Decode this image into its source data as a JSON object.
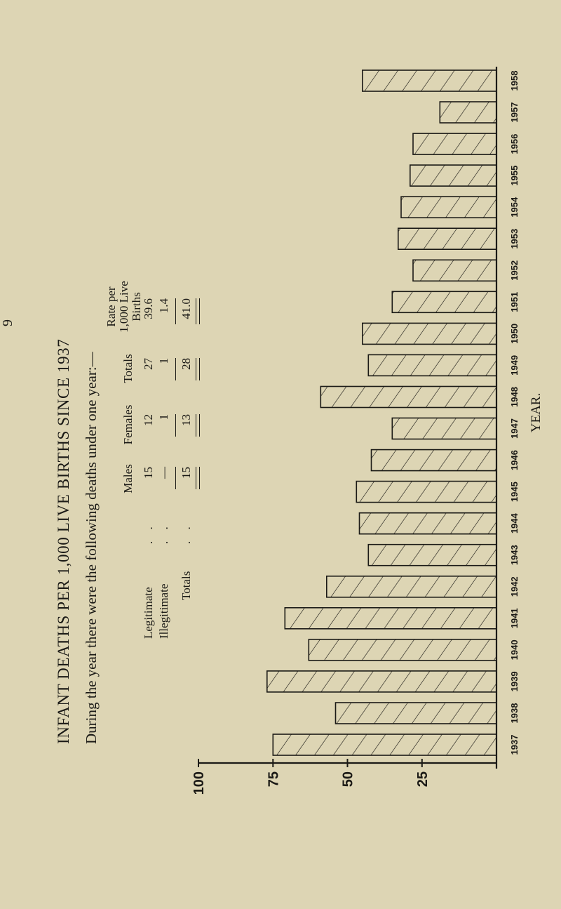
{
  "title": "INFANT DEATHS PER 1,000 LIVE BIRTHS SINCE 1937",
  "intro": "During the year there were the following deaths under one year:—",
  "table": {
    "headers": {
      "males": "Males",
      "females": "Females",
      "totals": "Totals",
      "rate": [
        "Rate per",
        "1,000 Live",
        "Births"
      ]
    },
    "rows": [
      {
        "label": "Legitimate",
        "dots": ". .",
        "males": "15",
        "females": "12",
        "totals": "27",
        "rate": "39.6"
      },
      {
        "label": "Illegitimate",
        "dots": ". .",
        "males": "—",
        "females": "1",
        "totals": "1",
        "rate": "1.4"
      }
    ],
    "total_row": {
      "label": "Totals",
      "dots": ". .",
      "males": "15",
      "females": "13",
      "totals": "28",
      "rate": "41.0"
    }
  },
  "chart_data": {
    "type": "bar",
    "orientation": "vertical (page printed rotated)",
    "categories": [
      "1937",
      "1938",
      "1939",
      "1940",
      "1941",
      "1942",
      "1943",
      "1944",
      "1945",
      "1946",
      "1947",
      "1948",
      "1949",
      "1950",
      "1951",
      "1952",
      "1953",
      "1954",
      "1955",
      "1956",
      "1957",
      "1958"
    ],
    "values": [
      75,
      54,
      77,
      63,
      71,
      57,
      43,
      46,
      47,
      42,
      35,
      59,
      43,
      45,
      35,
      28,
      33,
      32,
      29,
      28,
      19,
      45
    ],
    "ylim": [
      0,
      100
    ],
    "y_ticks": [
      "25",
      "50",
      "75",
      "100"
    ],
    "xlabel": "YEAR.",
    "ylabel": "",
    "bar_fill": "hatched",
    "colors": {
      "background": "#ddd5b4",
      "ink": "#1b1a16"
    }
  },
  "page_number": "9"
}
